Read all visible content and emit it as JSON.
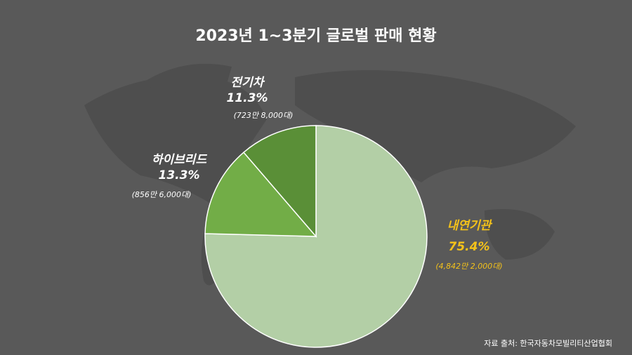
{
  "chart_data": {
    "type": "pie",
    "title": "2023년 1~3분기 글로벌 판매 현황",
    "categories": [
      "내연기관",
      "하이브리드",
      "전기차"
    ],
    "values": [
      75.4,
      13.3,
      11.3
    ],
    "value_labels": [
      "75.4%",
      "13.3%",
      "11.3%"
    ],
    "count_labels": [
      "(4,842만 2,000대)",
      "(856만 6,000대)",
      "(723만 8,000대)"
    ],
    "colors": [
      "#b3cfa6",
      "#72ad47",
      "#5a8f37"
    ],
    "label_colors": [
      "#f4c21a",
      "#ffffff",
      "#ffffff"
    ],
    "source": "자료 출처: 한국자동차모빌리티산업협회"
  }
}
